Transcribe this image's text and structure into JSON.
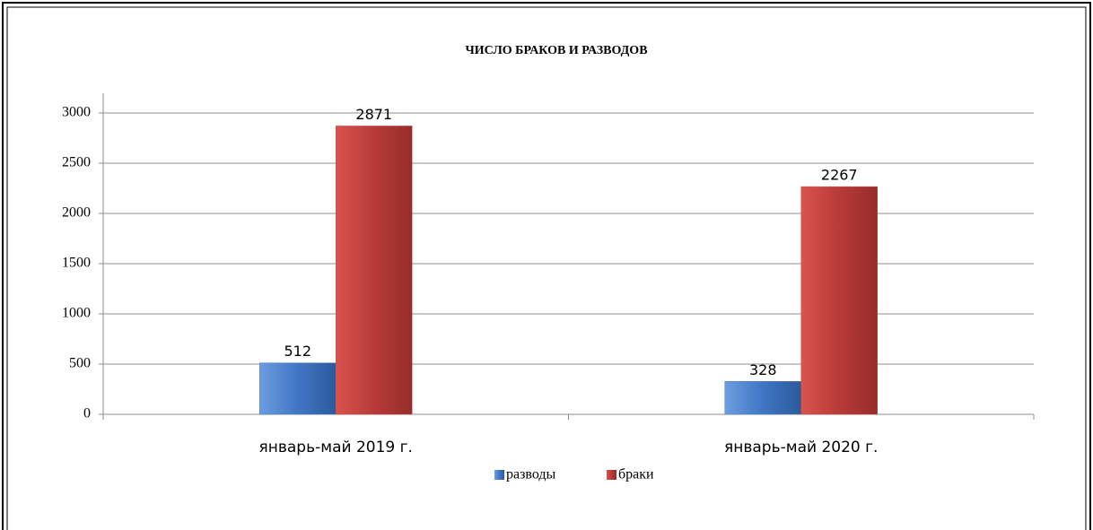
{
  "chart_data": {
    "type": "bar",
    "title": "ЧИСЛО БРАКОВ И РАЗВОДОВ",
    "categories": [
      "январь-май 2019 г.",
      "январь-май 2020 г."
    ],
    "series": [
      {
        "name": "разводы",
        "color": "#4f81bd",
        "values": [
          512,
          328
        ]
      },
      {
        "name": "браки",
        "color": "#c0504d",
        "values": [
          2871,
          2267
        ]
      }
    ],
    "ylim": [
      0,
      3000
    ],
    "yticks": [
      0,
      500,
      1000,
      1500,
      2000,
      2500,
      3000
    ],
    "grid": true,
    "legend": "bottom"
  }
}
